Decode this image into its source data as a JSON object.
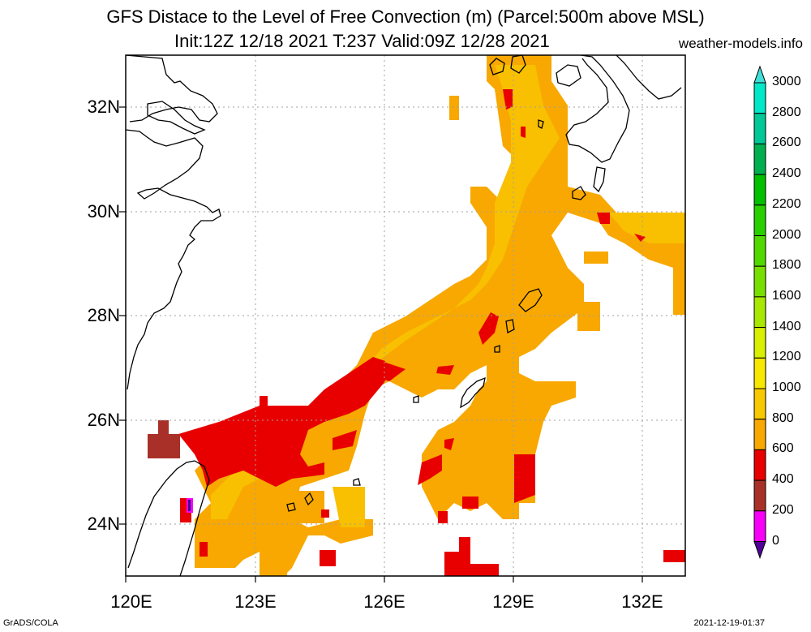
{
  "title": {
    "line1": "GFS Distace to the Level of Free Convection (m) (Parcel:500m above MSL)",
    "line2": "Init:12Z 12/18 2021 T:237 Valid:09Z 12/28 2021",
    "site": "weather-models.info"
  },
  "footer": {
    "left": "GrADS/COLA",
    "right": "2021-12-19-01:37"
  },
  "map": {
    "lat_labels": [
      "32N",
      "30N",
      "28N",
      "26N",
      "24N"
    ],
    "lon_labels": [
      "120E",
      "123E",
      "126E",
      "129E",
      "132E"
    ],
    "lat_range": [
      23,
      33
    ],
    "lon_range": [
      120,
      133
    ],
    "grid": "dotted",
    "coastline_color": "#000000"
  },
  "colorbar": {
    "labels": [
      "3000",
      "2800",
      "2600",
      "2400",
      "2200",
      "2000",
      "1800",
      "1600",
      "1400",
      "1200",
      "1000",
      "800",
      "600",
      "400",
      "200",
      "0"
    ],
    "colors": [
      "#00e8c8",
      "#00c896",
      "#00b050",
      "#00c000",
      "#28d000",
      "#50d800",
      "#78e000",
      "#a8e800",
      "#d8f000",
      "#f8e800",
      "#f8c800",
      "#f8a800",
      "#e80000",
      "#a83028",
      "#f800f8",
      "#400090"
    ],
    "top_arrow_color": "#40e0d8",
    "bottom_arrow_color": "#500098"
  },
  "field_colors": {
    "c600_800": "#f8a800",
    "c800_1000": "#f8c000",
    "c400_600": "#e80000",
    "c200_400": "#a83028",
    "c0_200": "#f800f8"
  }
}
